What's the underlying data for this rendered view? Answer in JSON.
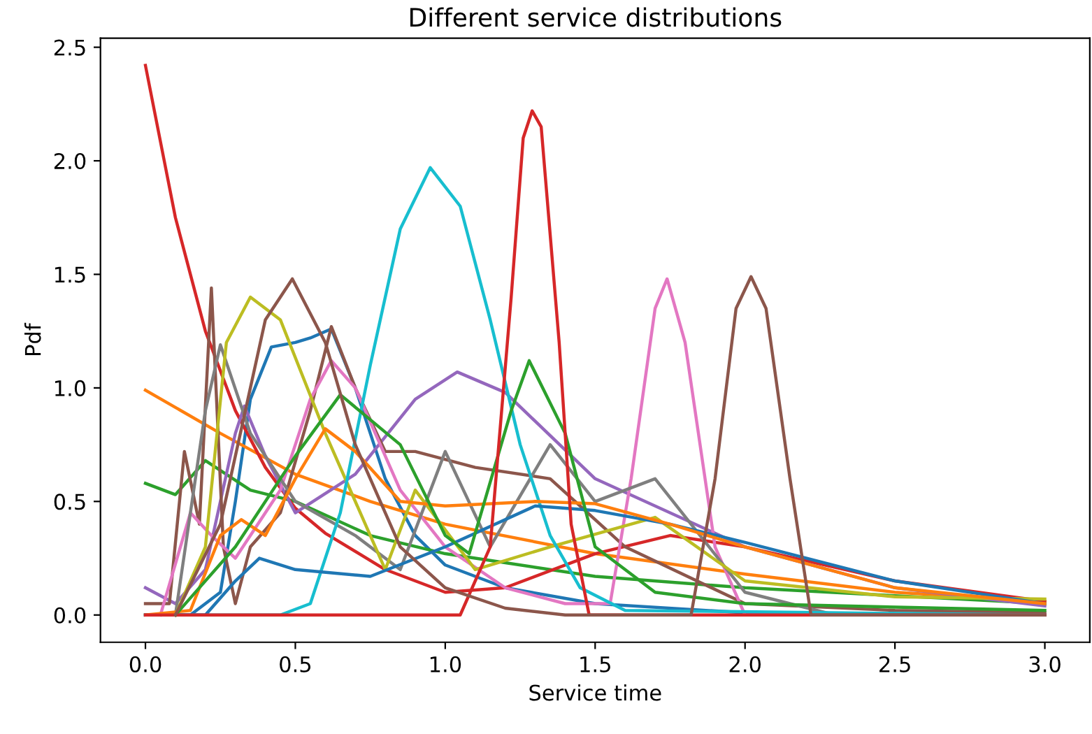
{
  "chart_data": {
    "type": "line",
    "title": "Different service distributions",
    "xlabel": "Service time",
    "ylabel": "Pdf",
    "xlim": [
      -0.15,
      3.15
    ],
    "ylim": [
      -0.12,
      2.54
    ],
    "xticks": [
      {
        "value": 0,
        "label": "0.0"
      },
      {
        "value": 0.5,
        "label": "0.5"
      },
      {
        "value": 1,
        "label": "1.0"
      },
      {
        "value": 1.5,
        "label": "1.5"
      },
      {
        "value": 2,
        "label": "2.0"
      },
      {
        "value": 2.5,
        "label": "2.5"
      },
      {
        "value": 3,
        "label": "3.0"
      }
    ],
    "yticks": [
      {
        "value": 0,
        "label": "0.0"
      },
      {
        "value": 0.5,
        "label": "0.5"
      },
      {
        "value": 1,
        "label": "1.0"
      },
      {
        "value": 1.5,
        "label": "1.5"
      },
      {
        "value": 2,
        "label": "2.0"
      },
      {
        "value": 2.5,
        "label": "2.5"
      }
    ],
    "grid": false,
    "legend": false,
    "line_style": "solid",
    "series": [
      {
        "color": "#1f77b4",
        "x": [
          0,
          0.15,
          0.25,
          0.3,
          0.35,
          0.42,
          0.5,
          0.55,
          0.62,
          0.7,
          0.8,
          0.9,
          1.0,
          1.2,
          1.5,
          2,
          3
        ],
        "values": [
          0,
          0,
          0.1,
          0.5,
          0.95,
          1.18,
          1.2,
          1.22,
          1.26,
          1.0,
          0.6,
          0.35,
          0.22,
          0.12,
          0.05,
          0.01,
          0
        ]
      },
      {
        "color": "#ff7f0e",
        "x": [
          0,
          0.25,
          0.5,
          0.75,
          1.0,
          1.5,
          2.0,
          2.5,
          3
        ],
        "values": [
          0.99,
          0.8,
          0.62,
          0.5,
          0.4,
          0.27,
          0.18,
          0.1,
          0.06
        ]
      },
      {
        "color": "#2ca02c",
        "x": [
          0,
          0.1,
          0.2,
          0.35,
          0.5,
          0.75,
          1.0,
          1.5,
          2.0,
          3
        ],
        "values": [
          0.58,
          0.53,
          0.68,
          0.55,
          0.5,
          0.35,
          0.27,
          0.17,
          0.12,
          0.05
        ]
      },
      {
        "color": "#d62728",
        "x": [
          0,
          0.1,
          0.2,
          0.3,
          0.4,
          0.5,
          0.6,
          0.8,
          1.0,
          1.2,
          1.5,
          1.75,
          2.0,
          2.5,
          3
        ],
        "values": [
          2.42,
          1.75,
          1.25,
          0.9,
          0.65,
          0.47,
          0.36,
          0.2,
          0.1,
          0.12,
          0.27,
          0.35,
          0.3,
          0.15,
          0.06
        ]
      },
      {
        "color": "#9467bd",
        "x": [
          0,
          0.1,
          0.2,
          0.3,
          0.33,
          0.4,
          0.5,
          0.7,
          0.9,
          1.04,
          1.2,
          1.5,
          2.0,
          2.5,
          3
        ],
        "values": [
          0.12,
          0.05,
          0.2,
          0.8,
          0.92,
          0.7,
          0.45,
          0.62,
          0.95,
          1.07,
          0.98,
          0.6,
          0.3,
          0.12,
          0.04
        ]
      },
      {
        "color": "#8c564b",
        "x": [
          0,
          0.08,
          0.13,
          0.18,
          0.22,
          0.26,
          0.3,
          0.35,
          0.45,
          0.55,
          0.62,
          0.7,
          0.8,
          0.9,
          1.1,
          1.35,
          1.6,
          2.0,
          2.5,
          3
        ],
        "values": [
          0.05,
          0.05,
          0.72,
          0.4,
          1.44,
          0.3,
          0.05,
          0.3,
          0.45,
          0.9,
          1.27,
          1.0,
          0.72,
          0.72,
          0.65,
          0.6,
          0.3,
          0.05,
          0.02,
          0.01
        ]
      },
      {
        "color": "#e377c2",
        "x": [
          0.05,
          0.15,
          0.22,
          0.3,
          0.45,
          0.55,
          0.62,
          0.7,
          0.85,
          1.0,
          1.2,
          1.4,
          1.55,
          1.62,
          1.7,
          1.74,
          1.8,
          1.9,
          2.0,
          3
        ],
        "values": [
          0,
          0.45,
          0.35,
          0.25,
          0.55,
          0.95,
          1.12,
          1.0,
          0.55,
          0.3,
          0.12,
          0.05,
          0.05,
          0.6,
          1.35,
          1.48,
          1.2,
          0.3,
          0,
          0
        ]
      },
      {
        "color": "#7f7f7f",
        "x": [
          0.1,
          0.2,
          0.25,
          0.35,
          0.5,
          0.7,
          0.85,
          1.0,
          1.15,
          1.35,
          1.5,
          1.7,
          2.0,
          2.3,
          3
        ],
        "values": [
          0,
          0.9,
          1.19,
          0.8,
          0.5,
          0.35,
          0.2,
          0.72,
          0.3,
          0.75,
          0.5,
          0.6,
          0.1,
          0,
          0
        ]
      },
      {
        "color": "#bcbd22",
        "x": [
          0.1,
          0.2,
          0.27,
          0.35,
          0.45,
          0.6,
          0.8,
          0.9,
          1.1,
          1.35,
          1.7,
          2.0,
          2.5,
          3
        ],
        "values": [
          0,
          0.3,
          1.2,
          1.4,
          1.3,
          0.8,
          0.2,
          0.55,
          0.2,
          0.3,
          0.43,
          0.15,
          0.08,
          0.07
        ]
      },
      {
        "color": "#17becf",
        "x": [
          0,
          0.45,
          0.55,
          0.65,
          0.75,
          0.85,
          0.95,
          1.05,
          1.15,
          1.25,
          1.35,
          1.45,
          1.6,
          3
        ],
        "values": [
          0,
          0,
          0.05,
          0.45,
          1.1,
          1.7,
          1.97,
          1.8,
          1.3,
          0.75,
          0.35,
          0.12,
          0.02,
          0
        ]
      },
      {
        "color": "#1f77b4",
        "x": [
          0,
          0.2,
          0.3,
          0.38,
          0.5,
          0.75,
          1.0,
          1.3,
          1.5,
          1.75,
          2.0,
          2.5,
          3
        ],
        "values": [
          0,
          0,
          0.15,
          0.25,
          0.2,
          0.17,
          0.3,
          0.48,
          0.46,
          0.4,
          0.32,
          0.15,
          0.05
        ]
      },
      {
        "color": "#ff7f0e",
        "x": [
          0,
          0.15,
          0.25,
          0.32,
          0.4,
          0.5,
          0.6,
          0.7,
          0.85,
          1.0,
          1.3,
          1.5,
          1.75,
          2.0,
          2.5,
          3
        ],
        "values": [
          0,
          0.02,
          0.35,
          0.42,
          0.35,
          0.6,
          0.82,
          0.72,
          0.5,
          0.48,
          0.5,
          0.49,
          0.4,
          0.3,
          0.12,
          0.05
        ]
      },
      {
        "color": "#2ca02c",
        "x": [
          0.1,
          0.3,
          0.5,
          0.65,
          0.85,
          1.0,
          1.08,
          1.22,
          1.28,
          1.4,
          1.5,
          1.7,
          2.0,
          3
        ],
        "values": [
          0,
          0.3,
          0.7,
          0.97,
          0.75,
          0.35,
          0.27,
          0.9,
          1.12,
          0.8,
          0.3,
          0.1,
          0.05,
          0.02
        ]
      },
      {
        "color": "#d62728",
        "x": [
          0,
          1.05,
          1.15,
          1.22,
          1.26,
          1.29,
          1.32,
          1.38,
          1.42,
          1.48,
          3
        ],
        "values": [
          0,
          0,
          0.3,
          1.4,
          2.1,
          2.22,
          2.15,
          1.2,
          0.4,
          0,
          0
        ]
      },
      {
        "color": "#8c564b",
        "x": [
          0.1,
          0.25,
          0.4,
          0.49,
          0.6,
          0.7,
          0.85,
          1.0,
          1.2,
          1.4,
          1.82,
          1.9,
          1.97,
          2.02,
          2.07,
          2.15,
          2.22,
          3
        ],
        "values": [
          0,
          0.4,
          1.3,
          1.48,
          1.2,
          0.75,
          0.3,
          0.12,
          0.03,
          0,
          0,
          0.6,
          1.35,
          1.49,
          1.35,
          0.6,
          0,
          0
        ]
      }
    ]
  }
}
